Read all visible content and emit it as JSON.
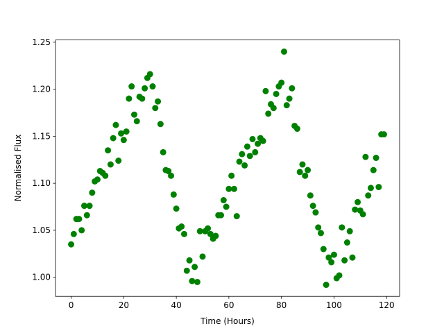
{
  "chart_data": {
    "type": "scatter",
    "xlabel": "Time (Hours)",
    "ylabel": "Normalised Flux",
    "color": "#008000",
    "grid": false,
    "xlim": [
      -5.95,
      124.95
    ],
    "ylim": [
      0.9797,
      1.2524
    ],
    "xticks": [
      0,
      20,
      40,
      60,
      80,
      100,
      120
    ],
    "yticks": [
      {
        "value": 1.0,
        "label": "1.00"
      },
      1.05,
      {
        "value": 1.1,
        "label": "1.10"
      },
      1.15,
      {
        "value": 1.2,
        "label": "1.20"
      },
      1.25
    ],
    "x": [
      0,
      1,
      2,
      3,
      4,
      5,
      6,
      7,
      8,
      9,
      10,
      11,
      12,
      13,
      14,
      15,
      16,
      17,
      18,
      19,
      20,
      21,
      22,
      23,
      24,
      25,
      26,
      27,
      28,
      29,
      30,
      31,
      32,
      33,
      34,
      35,
      36,
      37,
      38,
      39,
      40,
      41,
      42,
      43,
      44,
      45,
      46,
      47,
      48,
      49,
      50,
      51,
      52,
      53,
      54,
      55,
      56,
      57,
      58,
      59,
      60,
      61,
      62,
      63,
      64,
      65,
      66,
      67,
      68,
      69,
      70,
      71,
      72,
      73,
      74,
      75,
      76,
      77,
      78,
      79,
      80,
      81,
      82,
      83,
      84,
      85,
      86,
      87,
      88,
      89,
      90,
      91,
      92,
      93,
      94,
      95,
      96,
      97,
      98,
      99,
      100,
      101,
      102,
      103,
      104,
      105,
      106,
      107,
      108,
      109,
      110,
      111,
      112,
      113,
      114,
      115,
      116,
      117,
      118,
      119
    ],
    "values": [
      1.035,
      1.046,
      1.062,
      1.062,
      1.05,
      1.076,
      1.066,
      1.076,
      1.09,
      1.102,
      1.104,
      1.113,
      1.111,
      1.108,
      1.135,
      1.12,
      1.148,
      1.162,
      1.124,
      1.153,
      1.146,
      1.155,
      1.19,
      1.203,
      1.173,
      1.166,
      1.192,
      1.19,
      1.201,
      1.212,
      1.216,
      1.203,
      1.18,
      1.187,
      1.163,
      1.133,
      1.114,
      1.113,
      1.108,
      1.088,
      1.073,
      1.052,
      1.054,
      1.046,
      1.007,
      1.018,
      0.996,
      1.011,
      0.995,
      1.049,
      1.022,
      1.049,
      1.052,
      1.046,
      1.041,
      1.044,
      1.066,
      1.066,
      1.082,
      1.075,
      1.094,
      1.108,
      1.094,
      1.065,
      1.123,
      1.131,
      1.119,
      1.139,
      1.129,
      1.147,
      1.133,
      1.142,
      1.148,
      1.145,
      1.198,
      1.174,
      1.184,
      1.18,
      1.195,
      1.203,
      1.207,
      1.24,
      1.183,
      1.19,
      1.201,
      1.161,
      1.158,
      1.112,
      1.12,
      1.108,
      1.114,
      1.087,
      1.076,
      1.069,
      1.053,
      1.047,
      1.03,
      0.992,
      1.021,
      1.016,
      1.024,
      0.999,
      1.002,
      1.053,
      1.018,
      1.037,
      1.049,
      1.021,
      1.072,
      1.08,
      1.071,
      1.067,
      1.128,
      1.087,
      1.095,
      1.114,
      1.127,
      1.096,
      1.152,
      1.152
    ]
  }
}
